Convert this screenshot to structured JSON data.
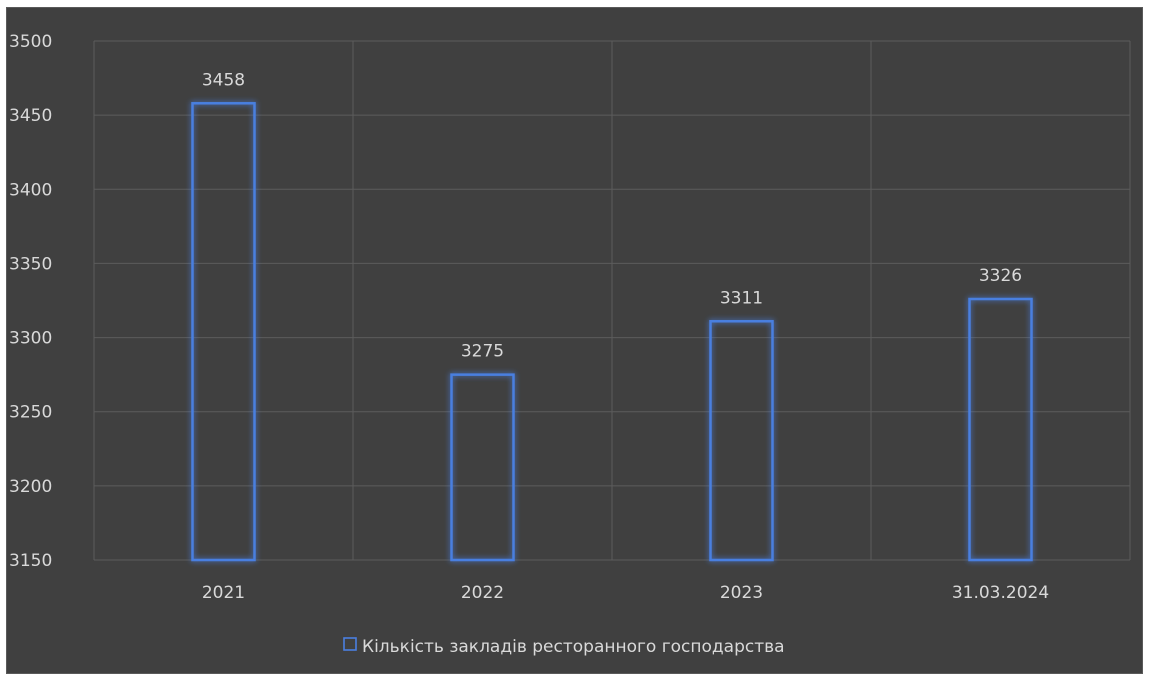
{
  "chart_data": {
    "type": "bar",
    "categories": [
      "2021",
      "2022",
      "2023",
      "31.03.2024"
    ],
    "series": [
      {
        "name": "Кількість закладів ресторанного господарства",
        "values": [
          3458,
          3275,
          3311,
          3326
        ]
      }
    ],
    "ylim": [
      3150,
      3500
    ],
    "yticks": [
      3150,
      3200,
      3250,
      3300,
      3350,
      3400,
      3450,
      3500
    ],
    "ytick_labels": [
      "3150",
      "3200",
      "3250",
      "3300",
      "3350",
      "3400",
      "3450",
      "3500"
    ],
    "data_labels": [
      "3458",
      "3275",
      "3311",
      "3326"
    ],
    "grid": true,
    "legend_position": "bottom",
    "title": "",
    "xlabel": "",
    "ylabel": ""
  },
  "colors": {
    "background": "#404040",
    "bar_outline": "#4a7fe0",
    "bar_glow": "#2f5bb8",
    "text": "#d9d9d9",
    "grid": "#5c5c5c"
  }
}
